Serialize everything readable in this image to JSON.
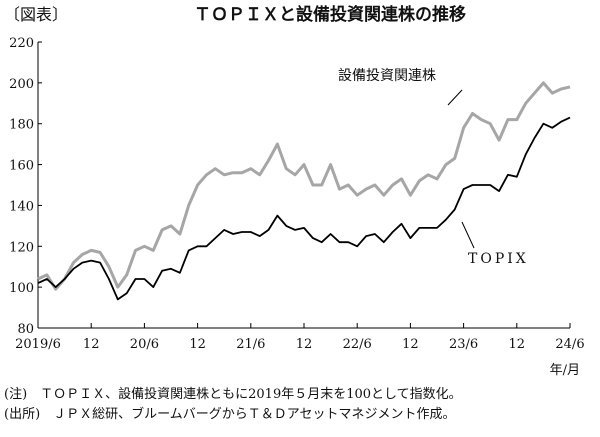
{
  "chart_data": {
    "type": "line",
    "figure_label": "〔図表〕",
    "title": "ＴＯＰＩＸと設備投資関連株の推移",
    "x_unit": "年/月",
    "x": [
      "2019-06",
      "2019-07",
      "2019-08",
      "2019-09",
      "2019-10",
      "2019-11",
      "2019-12",
      "2020-01",
      "2020-02",
      "2020-03",
      "2020-04",
      "2020-05",
      "2020-06",
      "2020-07",
      "2020-08",
      "2020-09",
      "2020-10",
      "2020-11",
      "2020-12",
      "2021-01",
      "2021-02",
      "2021-03",
      "2021-04",
      "2021-05",
      "2021-06",
      "2021-07",
      "2021-08",
      "2021-09",
      "2021-10",
      "2021-11",
      "2021-12",
      "2022-01",
      "2022-02",
      "2022-03",
      "2022-04",
      "2022-05",
      "2022-06",
      "2022-07",
      "2022-08",
      "2022-09",
      "2022-10",
      "2022-11",
      "2022-12",
      "2023-01",
      "2023-02",
      "2023-03",
      "2023-04",
      "2023-05",
      "2023-06",
      "2023-07",
      "2023-08",
      "2023-09",
      "2023-10",
      "2023-11",
      "2023-12",
      "2024-01",
      "2024-02",
      "2024-03",
      "2024-04",
      "2024-05",
      "2024-06"
    ],
    "xlim": [
      "2019-06",
      "2024-06"
    ],
    "xticks": [
      {
        "value": "2019-06",
        "label": "2019/6"
      },
      {
        "value": "2019-12",
        "label": "12"
      },
      {
        "value": "2020-06",
        "label": "20/6"
      },
      {
        "value": "2020-12",
        "label": "12"
      },
      {
        "value": "2021-06",
        "label": "21/6"
      },
      {
        "value": "2021-12",
        "label": "12"
      },
      {
        "value": "2022-06",
        "label": "22/6"
      },
      {
        "value": "2022-12",
        "label": "12"
      },
      {
        "value": "2023-06",
        "label": "23/6"
      },
      {
        "value": "2023-12",
        "label": "12"
      },
      {
        "value": "2024-06",
        "label": "24/6"
      }
    ],
    "ylim": [
      80,
      220
    ],
    "yticks": [
      80,
      100,
      120,
      140,
      160,
      180,
      200,
      220
    ],
    "series": [
      {
        "name": "設備投資関連株",
        "color": "#a6a6a6",
        "values": [
          104,
          106,
          99,
          104,
          112,
          116,
          118,
          117,
          110,
          100,
          106,
          118,
          120,
          118,
          128,
          130,
          126,
          140,
          150,
          155,
          158,
          155,
          156,
          156,
          158,
          155,
          162,
          170,
          158,
          155,
          160,
          150,
          150,
          160,
          148,
          150,
          145,
          148,
          150,
          145,
          150,
          153,
          145,
          152,
          155,
          153,
          160,
          163,
          178,
          185,
          182,
          180,
          172,
          182,
          182,
          190,
          195,
          200,
          195,
          197,
          198
        ]
      },
      {
        "name": "TOPIX",
        "color": "#000000",
        "values": [
          102,
          104,
          100,
          104,
          109,
          112,
          113,
          112,
          104,
          94,
          97,
          104,
          104,
          100,
          108,
          109,
          107,
          118,
          120,
          120,
          124,
          128,
          126,
          127,
          127,
          125,
          128,
          135,
          130,
          128,
          129,
          124,
          122,
          126,
          122,
          122,
          120,
          125,
          126,
          122,
          127,
          131,
          124,
          129,
          129,
          129,
          133,
          138,
          148,
          150,
          150,
          150,
          147,
          155,
          154,
          165,
          173,
          180,
          178,
          181,
          183
        ]
      }
    ],
    "notes": [
      "(注)　ＴＯＰＩＸ、設備投資関連株ともに2019年５月末を100として指数化。",
      "(出所)　ＪＰＸ総研、ブルームバーグからＴ＆Ｄアセットマネジメント作成。"
    ]
  }
}
